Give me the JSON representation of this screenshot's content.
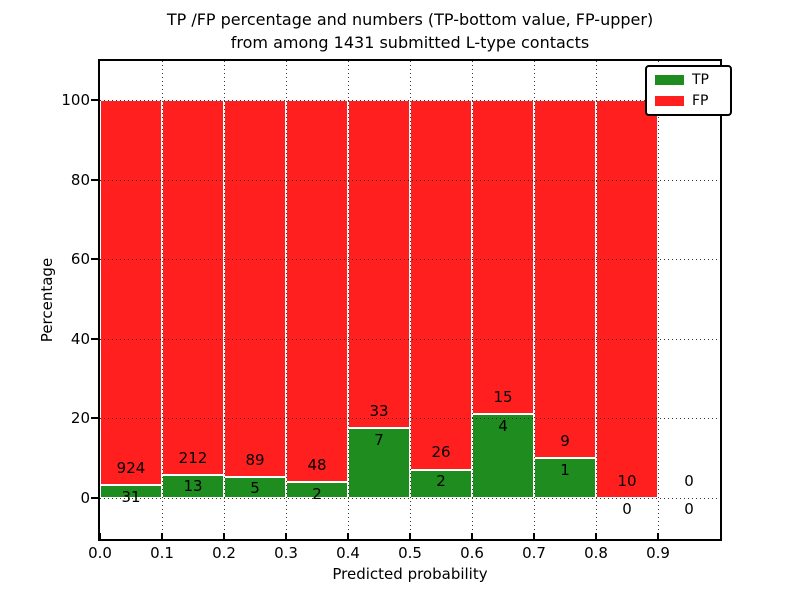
{
  "figure": {
    "title_line1": "TP /FP percentage and numbers (TP-bottom value, FP-upper)",
    "title_line2": "from among 1431 submitted L-type contacts"
  },
  "chart_data": {
    "type": "bar",
    "subtype": "stacked-percentage-histogram",
    "title": "TP /FP percentage and numbers (TP-bottom value, FP-upper) from among 1431 submitted L-type contacts",
    "xlabel": "Predicted probability",
    "ylabel": "Percentage",
    "total_submitted_contacts": 1431,
    "bin_width": 0.1,
    "x_tick_labels": [
      "0.0",
      "0.1",
      "0.2",
      "0.3",
      "0.4",
      "0.5",
      "0.6",
      "0.7",
      "0.8",
      "0.9"
    ],
    "y_ticks": [
      0,
      20,
      40,
      60,
      80,
      100
    ],
    "y_tick_labels": [
      "0",
      "20",
      "40",
      "60",
      "80",
      "100"
    ],
    "xlim": [
      0.0,
      1.0
    ],
    "ylim": [
      -10.5,
      110
    ],
    "grid": "dotted, drawn above bars",
    "legend_position": "upper right",
    "categories": [
      "0.0",
      "0.1",
      "0.2",
      "0.3",
      "0.4",
      "0.5",
      "0.6",
      "0.7",
      "0.8",
      "0.9"
    ],
    "series": [
      {
        "name": "TP",
        "color": "#1f8c1f",
        "values": [
          31,
          13,
          5,
          2,
          7,
          2,
          4,
          1,
          0,
          0
        ]
      },
      {
        "name": "FP",
        "color": "#ff1f1f",
        "values": [
          924,
          212,
          89,
          48,
          33,
          26,
          15,
          9,
          10,
          0
        ]
      }
    ],
    "tp_percent_of_bin": [
      3.2,
      5.8,
      5.3,
      4.0,
      17.5,
      7.1,
      21.1,
      10.0,
      0.0,
      0.0
    ],
    "legend": {
      "entries": [
        {
          "label": "TP",
          "color": "#1f8c1f"
        },
        {
          "label": "FP",
          "color": "#ff1f1f"
        }
      ]
    }
  },
  "colors": {
    "tp_green": "#1f8c1f",
    "fp_red": "#ff1f1f",
    "grid": "#111111",
    "frame": "#000000",
    "background": "#ffffff",
    "text": "#000000"
  }
}
